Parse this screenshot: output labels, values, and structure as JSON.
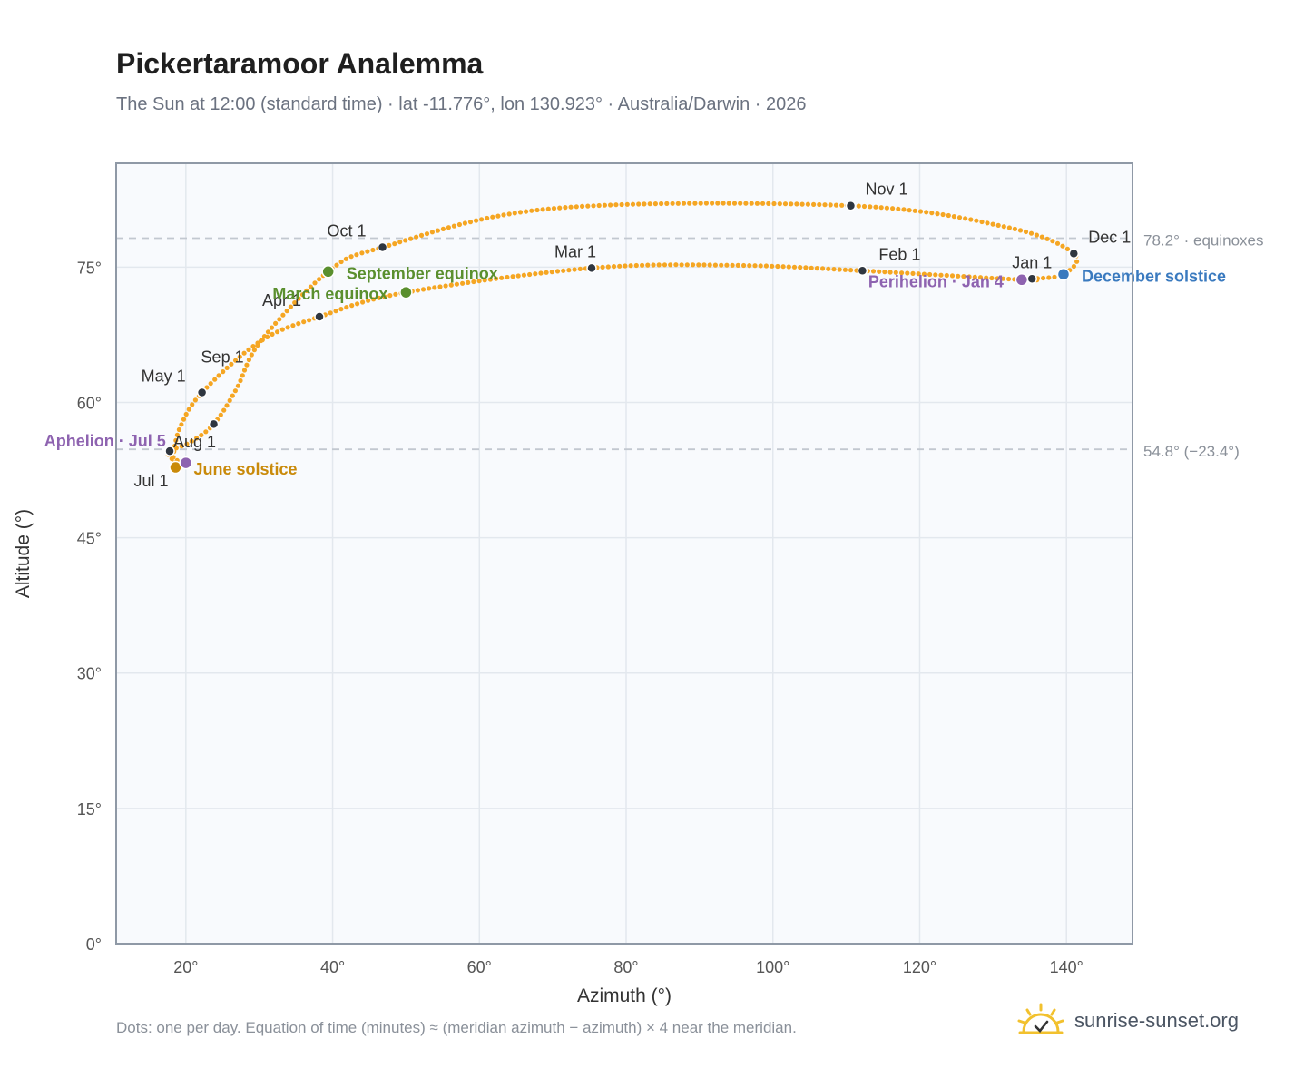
{
  "title": "Pickertaramoor Analemma",
  "subtitle": "The Sun at 12:00 (standard time) · lat -11.776°, lon 130.923° · Australia/Darwin · 2026",
  "footnote": "Dots: one per day. Equation of time (minutes) ≈ (meridian azimuth − azimuth) × 4 near the meridian.",
  "brand": {
    "name": "sunrise-sunset.org",
    "icon": "sun-logo-icon"
  },
  "colors": {
    "curve": "#f5a623",
    "month_dot": "#2f3640",
    "equinox": "#5a8f2e",
    "june_solstice": "#c98a0a",
    "december_solstice": "#3a7abf",
    "apsis": "#8e63b0",
    "reference_line": "#c2c8d0",
    "plot_background": "#f8fafd",
    "grid": "#e3e8ee",
    "frame": "#8f99a6"
  },
  "chart_data": {
    "type": "scatter",
    "xlabel": "Azimuth (°)",
    "ylabel": "Altitude (°)",
    "xlim": [
      10.5,
      149
    ],
    "ylim": [
      0,
      86.5
    ],
    "xticks": [
      20,
      40,
      60,
      80,
      100,
      120,
      140
    ],
    "xtick_labels": [
      "20°",
      "40°",
      "60°",
      "80°",
      "100°",
      "120°",
      "140°"
    ],
    "yticks": [
      0,
      15,
      30,
      45,
      60,
      75
    ],
    "ytick_labels": [
      "0°",
      "15°",
      "30°",
      "45°",
      "60°",
      "75°"
    ],
    "grid": true,
    "reference_lines": [
      {
        "y": 78.2,
        "label": "78.2° · equinoxes"
      },
      {
        "y": 54.8,
        "label": "54.8° (−23.4°)"
      }
    ],
    "month_markers": [
      {
        "label": "Jan 1",
        "azimuth": 135.3,
        "altitude": 73.7
      },
      {
        "label": "Feb 1",
        "azimuth": 112.2,
        "altitude": 74.6
      },
      {
        "label": "Mar 1",
        "azimuth": 75.3,
        "altitude": 74.9
      },
      {
        "label": "Apr 1",
        "azimuth": 38.2,
        "altitude": 69.5
      },
      {
        "label": "May 1",
        "azimuth": 22.2,
        "altitude": 61.1
      },
      {
        "label": "Jul 1",
        "azimuth": 18.6,
        "altitude": 52.9
      },
      {
        "label": "Aug 1",
        "azimuth": 17.8,
        "altitude": 54.6
      },
      {
        "label": "Sep 1",
        "azimuth": 23.8,
        "altitude": 57.6
      },
      {
        "label": "Oct 1",
        "azimuth": 46.8,
        "altitude": 77.2
      },
      {
        "label": "Nov 1",
        "azimuth": 110.6,
        "altitude": 81.8
      },
      {
        "label": "Dec 1",
        "azimuth": 141.0,
        "altitude": 76.5
      }
    ],
    "events": [
      {
        "label": "March equinox",
        "azimuth": 50.0,
        "altitude": 72.2,
        "kind": "equinox"
      },
      {
        "label": "September equinox",
        "azimuth": 39.4,
        "altitude": 74.5,
        "kind": "equinox"
      },
      {
        "label": "June solstice",
        "azimuth": 18.6,
        "altitude": 52.8,
        "kind": "june_solstice"
      },
      {
        "label": "December solstice",
        "azimuth": 139.6,
        "altitude": 74.2,
        "kind": "december_solstice"
      },
      {
        "label": "Aphelion · Jul 5",
        "azimuth": 20.0,
        "altitude": 53.3,
        "kind": "apsis"
      },
      {
        "label": "Perihelion · Jan 4",
        "azimuth": 133.9,
        "altitude": 73.6,
        "kind": "apsis"
      }
    ],
    "daily_path": [
      {
        "date": "Jan 1",
        "azimuth": 135.3,
        "altitude": 73.7
      },
      {
        "date": "Jan 4",
        "azimuth": 133.9,
        "altitude": 73.6
      },
      {
        "date": "Feb 1",
        "azimuth": 112.2,
        "altitude": 74.6
      },
      {
        "date": "Feb 15",
        "azimuth": 95.0,
        "altitude": 75.2
      },
      {
        "date": "Mar 1",
        "azimuth": 75.3,
        "altitude": 74.9
      },
      {
        "date": "Mar 20",
        "azimuth": 50.0,
        "altitude": 72.2
      },
      {
        "date": "Apr 1",
        "azimuth": 38.2,
        "altitude": 69.5
      },
      {
        "date": "Apr 15",
        "azimuth": 30.2,
        "altitude": 66.8
      },
      {
        "date": "May 1",
        "azimuth": 22.2,
        "altitude": 61.1
      },
      {
        "date": "May 15",
        "azimuth": 19.2,
        "altitude": 57.2
      },
      {
        "date": "Jun 1",
        "azimuth": 18.3,
        "altitude": 54.0
      },
      {
        "date": "Jun 21",
        "azimuth": 18.6,
        "altitude": 52.8
      },
      {
        "date": "Jul 1",
        "azimuth": 18.6,
        "altitude": 52.9
      },
      {
        "date": "Jul 5",
        "azimuth": 20.0,
        "altitude": 53.3
      },
      {
        "date": "Jul 15",
        "azimuth": 18.0,
        "altitude": 53.8
      },
      {
        "date": "Aug 1",
        "azimuth": 17.8,
        "altitude": 54.6
      },
      {
        "date": "Aug 15",
        "azimuth": 20.6,
        "altitude": 55.6
      },
      {
        "date": "Sep 1",
        "azimuth": 23.8,
        "altitude": 57.6
      },
      {
        "date": "Sep 10",
        "azimuth": 26.9,
        "altitude": 61.5
      },
      {
        "date": "Sep 15",
        "azimuth": 30.2,
        "altitude": 66.8
      },
      {
        "date": "Sep 23",
        "azimuth": 39.4,
        "altitude": 74.5
      },
      {
        "date": "Oct 1",
        "azimuth": 46.8,
        "altitude": 77.2
      },
      {
        "date": "Oct 15",
        "azimuth": 70.0,
        "altitude": 81.5
      },
      {
        "date": "Nov 1",
        "azimuth": 110.6,
        "altitude": 81.8
      },
      {
        "date": "Nov 15",
        "azimuth": 132.0,
        "altitude": 79.4
      },
      {
        "date": "Dec 1",
        "azimuth": 141.0,
        "altitude": 76.5
      },
      {
        "date": "Dec 21",
        "azimuth": 139.6,
        "altitude": 74.2
      },
      {
        "date": "Dec 31",
        "azimuth": 135.3,
        "altitude": 73.7
      }
    ]
  }
}
